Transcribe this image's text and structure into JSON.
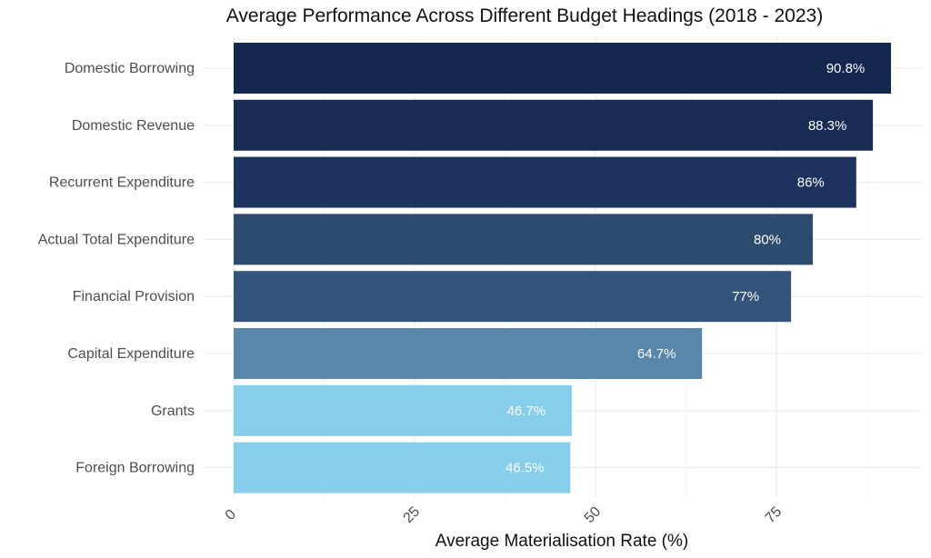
{
  "chart_data": {
    "type": "bar",
    "orientation": "horizontal",
    "title": "Average Performance Across Different Budget Headings (2018 - 2023)",
    "xlabel": "Average Materialisation Rate (%)",
    "ylabel": "",
    "xlim": [
      0,
      91
    ],
    "xticks": [
      0,
      25,
      50,
      75
    ],
    "grid": true,
    "categories": [
      "Domestic Borrowing",
      "Domestic Revenue",
      "Recurrent Expenditure",
      "Actual Total Expenditure",
      "Financial Provision",
      "Capital Expenditure",
      "Grants",
      "Foreign Borrowing"
    ],
    "values": [
      90.8,
      88.3,
      86,
      80,
      77,
      64.7,
      46.7,
      46.5
    ],
    "labels": [
      "90.8%",
      "88.3%",
      "86%",
      "80%",
      "77%",
      "64.7%",
      "46.7%",
      "46.5%"
    ],
    "colors": [
      "#13274f",
      "#172b55",
      "#1c335e",
      "#2d4a6f",
      "#34547b",
      "#5986ab",
      "#87ceeb",
      "#87ceeb"
    ]
  }
}
